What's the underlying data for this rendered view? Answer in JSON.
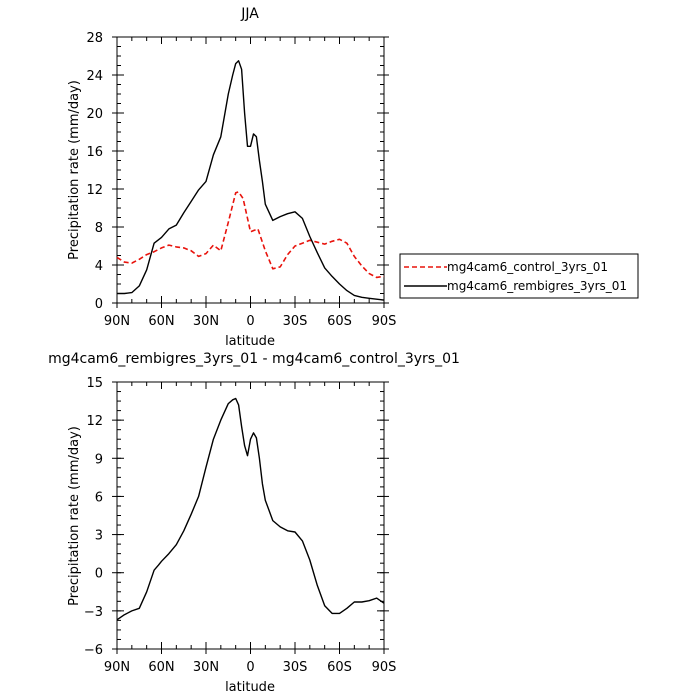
{
  "chart_data": [
    {
      "type": "line",
      "title": "JJA",
      "xlabel": "latitude",
      "ylabel": "Precipitation rate (mm/day)",
      "xlim": [
        90,
        -90
      ],
      "ylim": [
        0,
        28
      ],
      "x_ticks": [
        90,
        60,
        30,
        0,
        -30,
        -60,
        -90
      ],
      "x_tick_labels": [
        "90N",
        "60N",
        "30N",
        "0",
        "30S",
        "60S",
        "90S"
      ],
      "y_ticks": [
        0,
        4,
        8,
        12,
        16,
        20,
        24,
        28
      ],
      "y_tick_labels": [
        "0",
        "4",
        "8",
        "12",
        "16",
        "20",
        "24",
        "28"
      ],
      "legend": {
        "position": "right"
      },
      "series": [
        {
          "name": "mg4cam6_control_3yrs_01",
          "color": "#e8130c",
          "dash": "dashed",
          "x": [
            90,
            85,
            80,
            75,
            70,
            65,
            60,
            55,
            50,
            45,
            40,
            35,
            30,
            25,
            20,
            15,
            10,
            8,
            5,
            0,
            -5,
            -10,
            -15,
            -20,
            -25,
            -30,
            -35,
            -40,
            -45,
            -50,
            -55,
            -60,
            -65,
            -70,
            -75,
            -80,
            -85,
            -90
          ],
          "values": [
            4.8,
            4.3,
            4.2,
            4.6,
            5.1,
            5.4,
            5.8,
            6.1,
            5.9,
            5.8,
            5.5,
            4.9,
            5.2,
            6.1,
            5.5,
            8.5,
            11.6,
            11.7,
            11.0,
            7.5,
            7.8,
            5.5,
            3.6,
            3.8,
            5.1,
            6.0,
            6.3,
            6.6,
            6.4,
            6.2,
            6.5,
            6.7,
            6.3,
            4.9,
            3.9,
            3.1,
            2.7,
            2.8
          ]
        },
        {
          "name": "mg4cam6_rembigres_3yrs_01",
          "color": "#000000",
          "dash": "solid",
          "x": [
            90,
            85,
            80,
            75,
            70,
            65,
            60,
            55,
            50,
            45,
            40,
            35,
            30,
            25,
            20,
            15,
            12,
            10,
            8,
            6,
            4,
            2,
            0,
            -2,
            -4,
            -6,
            -8,
            -10,
            -15,
            -20,
            -25,
            -30,
            -35,
            -40,
            -45,
            -50,
            -55,
            -60,
            -65,
            -70,
            -75,
            -80,
            -85,
            -90
          ],
          "values": [
            1.0,
            1.0,
            1.1,
            1.8,
            3.5,
            6.3,
            6.9,
            7.8,
            8.2,
            9.5,
            10.7,
            11.9,
            12.8,
            15.6,
            17.5,
            22.0,
            24.0,
            25.2,
            25.5,
            24.6,
            20.0,
            16.5,
            16.5,
            17.8,
            17.5,
            15.0,
            12.8,
            10.4,
            8.7,
            9.1,
            9.4,
            9.6,
            8.9,
            7.0,
            5.3,
            3.7,
            2.8,
            2.0,
            1.3,
            0.8,
            0.6,
            0.5,
            0.4,
            0.3
          ]
        }
      ]
    },
    {
      "type": "line",
      "title": "mg4cam6_rembigres_3yrs_01 - mg4cam6_control_3yrs_01",
      "xlabel": "latitude",
      "ylabel": "Precipitation rate (mm/day)",
      "xlim": [
        90,
        -90
      ],
      "ylim": [
        -6,
        15
      ],
      "x_ticks": [
        90,
        60,
        30,
        0,
        -30,
        -60,
        -90
      ],
      "x_tick_labels": [
        "90N",
        "60N",
        "30N",
        "0",
        "30S",
        "60S",
        "90S"
      ],
      "y_ticks": [
        -6,
        -3,
        0,
        3,
        6,
        9,
        12,
        15
      ],
      "y_tick_labels": [
        "−6",
        "−3",
        "0",
        "3",
        "6",
        "9",
        "12",
        "15"
      ],
      "series": [
        {
          "color": "#000000",
          "dash": "solid",
          "x": [
            90,
            85,
            80,
            75,
            70,
            65,
            62,
            60,
            55,
            50,
            45,
            40,
            35,
            30,
            25,
            20,
            15,
            12,
            10,
            8,
            6,
            4,
            2,
            0,
            -2,
            -4,
            -6,
            -8,
            -10,
            -15,
            -20,
            -25,
            -30,
            -35,
            -40,
            -45,
            -50,
            -55,
            -60,
            -65,
            -70,
            -75,
            -80,
            -85,
            -90
          ],
          "values": [
            -3.7,
            -3.3,
            -3.0,
            -2.8,
            -1.5,
            0.2,
            0.6,
            0.9,
            1.5,
            2.2,
            3.3,
            4.6,
            6.0,
            8.3,
            10.5,
            12.0,
            13.3,
            13.6,
            13.7,
            13.2,
            11.5,
            10.0,
            9.2,
            10.5,
            11.0,
            10.6,
            9.0,
            7.0,
            5.7,
            4.1,
            3.6,
            3.3,
            3.2,
            2.5,
            1.0,
            -1.0,
            -2.6,
            -3.2,
            -3.2,
            -2.8,
            -2.3,
            -2.3,
            -2.2,
            -2.0,
            -2.4
          ]
        }
      ]
    }
  ]
}
